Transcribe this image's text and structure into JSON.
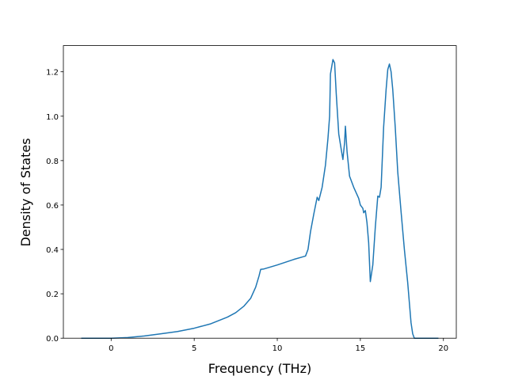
{
  "chart_data": {
    "type": "line",
    "x_label": "Frequency (THz)",
    "y_label": "Density of States",
    "x": [
      -1.8,
      0,
      1,
      2,
      3,
      4,
      5,
      6,
      7,
      7.5,
      8,
      8.4,
      8.7,
      8.9,
      9.0,
      9.2,
      10,
      11,
      11.7,
      11.85,
      12,
      12.2,
      12.4,
      12.5,
      12.7,
      12.9,
      13.05,
      13.15,
      13.2,
      13.35,
      13.45,
      13.55,
      13.7,
      13.85,
      13.95,
      14.05,
      14.1,
      14.2,
      14.35,
      14.6,
      14.9,
      15.0,
      15.15,
      15.2,
      15.3,
      15.4,
      15.5,
      15.6,
      15.75,
      15.9,
      16.05,
      16.15,
      16.25,
      16.4,
      16.55,
      16.65,
      16.75,
      16.85,
      16.95,
      17.1,
      17.25,
      17.45,
      17.65,
      17.85,
      17.95,
      18.05,
      18.15,
      18.25,
      19.7
    ],
    "series": [
      {
        "color": "#1f77b4",
        "values": [
          0,
          0,
          0.003,
          0.01,
          0.02,
          0.03,
          0.045,
          0.065,
          0.095,
          0.115,
          0.145,
          0.18,
          0.23,
          0.28,
          0.31,
          0.312,
          0.33,
          0.355,
          0.37,
          0.4,
          0.48,
          0.56,
          0.635,
          0.62,
          0.68,
          0.78,
          0.9,
          1.0,
          1.19,
          1.255,
          1.24,
          1.1,
          0.92,
          0.85,
          0.805,
          0.88,
          0.955,
          0.84,
          0.73,
          0.68,
          0.63,
          0.6,
          0.585,
          0.565,
          0.575,
          0.52,
          0.43,
          0.255,
          0.33,
          0.5,
          0.64,
          0.635,
          0.68,
          0.95,
          1.12,
          1.21,
          1.235,
          1.2,
          1.12,
          0.95,
          0.75,
          0.57,
          0.4,
          0.25,
          0.16,
          0.07,
          0.02,
          0,
          0
        ]
      }
    ],
    "xlim": [
      -2.875,
      20.775
    ],
    "ylim": [
      0,
      1.318
    ],
    "xticks": [
      0,
      5,
      10,
      15,
      20
    ],
    "yticks": [
      {
        "value": 0,
        "label": "0.0"
      },
      {
        "value": 0.2,
        "label": "0.2"
      },
      {
        "value": 0.4,
        "label": "0.4"
      },
      {
        "value": 0.6,
        "label": "0.6"
      },
      {
        "value": 0.8,
        "label": "0.8"
      },
      {
        "value": 1.0,
        "label": "1.0"
      },
      {
        "value": 1.2,
        "label": "1.2"
      }
    ]
  }
}
